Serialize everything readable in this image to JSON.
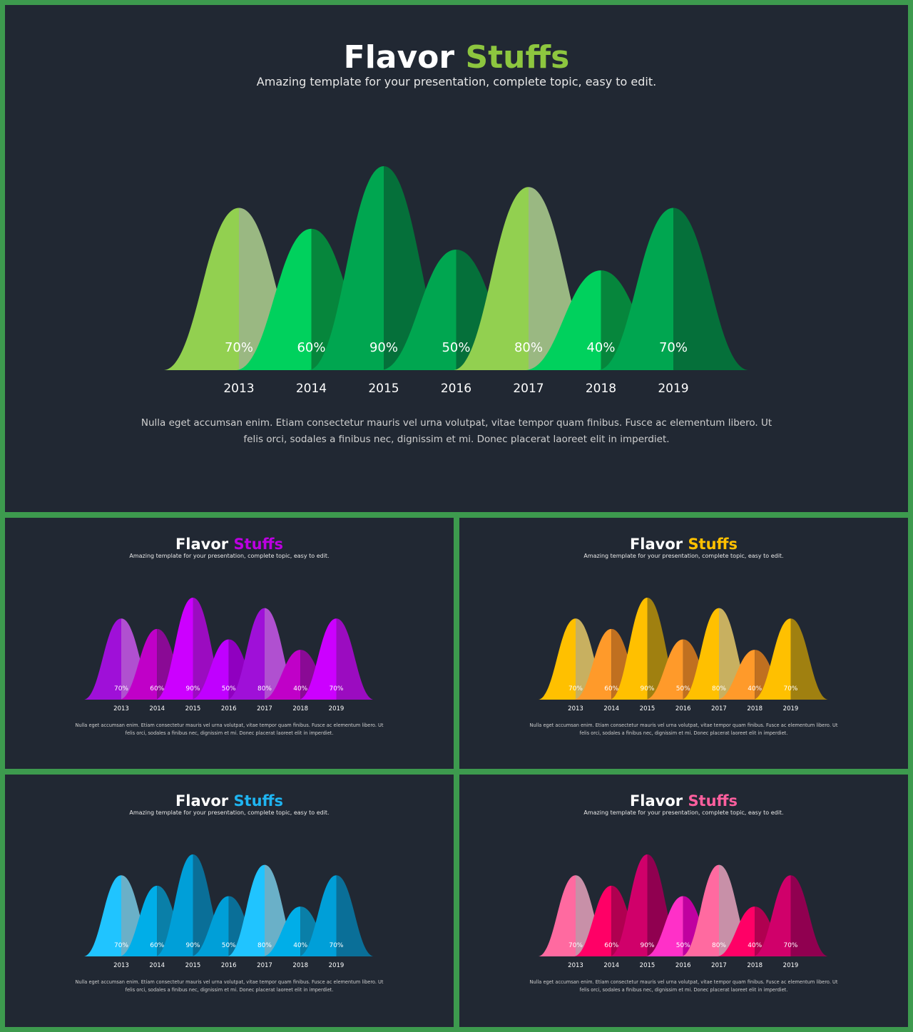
{
  "slides": [
    {
      "id": "main",
      "title_white": "Flavor",
      "title_accent": "Stuffs",
      "accent": "#8dc63f",
      "subtitle": "Amazing template for your presentation, complete topic, easy to edit.",
      "desc_line1": "Nulla eget accumsan enim. Etiam consectetur mauris vel urna volutpat, vitae tempor quam finibus. Fusce ac elementum libero. Ut",
      "desc_line2": "felis orci, sodales a finibus nec, dignissim et mi. Donec placerat laoreet elit in imperdiet.",
      "colors": [
        "#92d050",
        "#00d15d",
        "#00a650",
        "#00a650",
        "#92d050",
        "#00d15d",
        "#00a650"
      ],
      "shade_colors": [
        "#9ab882",
        "#06863c",
        "#05703a",
        "#05703a",
        "#9ab882",
        "#06863c",
        "#05703a"
      ]
    },
    {
      "id": "purple",
      "title_white": "Flavor",
      "title_accent": "Stuffs",
      "accent": "#bb00e0",
      "subtitle": "Amazing template for your presentation, complete topic, easy to edit.",
      "desc_line1": "Nulla eget accumsan enim. Etiam consectetur mauris vel urna volutpat, vitae tempor quam finibus. Fusce ac elementum libero. Ut",
      "desc_line2": "felis orci, sodales a finibus nec, dignissim et mi. Donec placerat laoreet elit in imperdiet.",
      "colors": [
        "#9f10d8",
        "#c000c8",
        "#cc00ff",
        "#c000ff",
        "#9f10d8",
        "#c000c8",
        "#cc00ff"
      ],
      "shade_colors": [
        "#b050d0",
        "#8a0a95",
        "#9b0cc0",
        "#9000c0",
        "#b050d0",
        "#8a0a95",
        "#9b0cc0"
      ]
    },
    {
      "id": "yellow",
      "title_white": "Flavor",
      "title_accent": "Stuffs",
      "accent": "#ffc000",
      "subtitle": "Amazing template for your presentation, complete topic, easy to edit.",
      "desc_line1": "Nulla eget accumsan enim. Etiam consectetur mauris vel urna volutpat, vitae tempor quam finibus. Fusce ac elementum libero. Ut",
      "desc_line2": "felis orci, sodales a finibus nec, dignissim et mi. Donec placerat laoreet elit in imperdiet.",
      "colors": [
        "#ffc000",
        "#ff9a2a",
        "#ffc000",
        "#ff9a2a",
        "#ffc000",
        "#ff9a2a",
        "#ffc000"
      ],
      "shade_colors": [
        "#c8b060",
        "#c07020",
        "#a08010",
        "#c07020",
        "#c8b060",
        "#c07020",
        "#a08010"
      ]
    },
    {
      "id": "blue",
      "title_white": "Flavor",
      "title_accent": "Stuffs",
      "accent": "#1fb4f0",
      "subtitle": "Amazing template for your presentation, complete topic, easy to edit.",
      "desc_line1": "Nulla eget accumsan enim. Etiam consectetur mauris vel urna volutpat, vitae tempor quam finibus. Fusce ac elementum libero. Ut",
      "desc_line2": "felis orci, sodales a finibus nec, dignissim et mi. Donec placerat laoreet elit in imperdiet.",
      "colors": [
        "#20c4ff",
        "#00aee8",
        "#009fd8",
        "#009fd8",
        "#20c4ff",
        "#00aee8",
        "#009fd8"
      ],
      "shade_colors": [
        "#6ab0c8",
        "#0a7fa8",
        "#0a6f98",
        "#0a6f98",
        "#6ab0c8",
        "#0a7fa8",
        "#0a6f98"
      ]
    },
    {
      "id": "pink",
      "title_white": "Flavor",
      "title_accent": "Stuffs",
      "accent": "#ff5f9e",
      "subtitle": "Amazing template for your presentation, complete topic, easy to edit.",
      "desc_line1": "Nulla eget accumsan enim. Etiam consectetur mauris vel urna volutpat, vitae tempor quam finibus. Fusce ac elementum libero. Ut",
      "desc_line2": "felis orci, sodales a finibus nec, dignissim et mi. Donec placerat laoreet elit in imperdiet.",
      "colors": [
        "#ff6aa0",
        "#ff0066",
        "#d0006a",
        "#ff30c8",
        "#ff6aa0",
        "#ff0066",
        "#d0006a"
      ],
      "shade_colors": [
        "#c890a8",
        "#b00050",
        "#900050",
        "#c000a0",
        "#c890a8",
        "#b00050",
        "#900050"
      ]
    }
  ],
  "chart_data": {
    "type": "area",
    "categories": [
      "2013",
      "2014",
      "2015",
      "2016",
      "2017",
      "2018",
      "2019"
    ],
    "values": [
      70,
      60,
      90,
      50,
      80,
      40,
      70
    ],
    "labels": [
      "70%",
      "60%",
      "90%",
      "50%",
      "80%",
      "40%",
      "70%"
    ],
    "ylim": [
      0,
      100
    ],
    "title": "Flavor Stuffs"
  }
}
